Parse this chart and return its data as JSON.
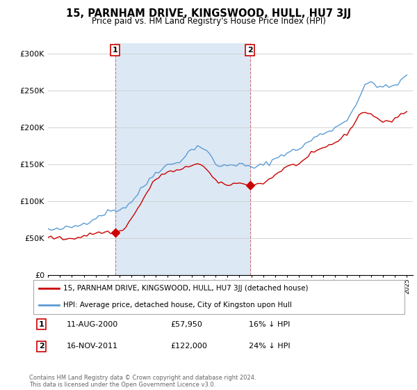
{
  "title": "15, PARNHAM DRIVE, KINGSWOOD, HULL, HU7 3JJ",
  "subtitle": "Price paid vs. HM Land Registry's House Price Index (HPI)",
  "ylabel_ticks": [
    "£0",
    "£50K",
    "£100K",
    "£150K",
    "£200K",
    "£250K",
    "£300K"
  ],
  "ytick_values": [
    0,
    50000,
    100000,
    150000,
    200000,
    250000,
    300000
  ],
  "ylim": [
    0,
    315000
  ],
  "xlim_start": 1995.3,
  "xlim_end": 2025.5,
  "marker1": {
    "year": 2000.62,
    "value": 57950,
    "label": "1"
  },
  "marker2": {
    "year": 2011.88,
    "value": 122000,
    "label": "2"
  },
  "vline1_x": 2000.62,
  "vline2_x": 2011.88,
  "legend_line1": "15, PARNHAM DRIVE, KINGSWOOD, HULL, HU7 3JJ (detached house)",
  "legend_line2": "HPI: Average price, detached house, City of Kingston upon Hull",
  "annot1_label": "1",
  "annot1_date": "11-AUG-2000",
  "annot1_price": "£57,950",
  "annot1_hpi": "16% ↓ HPI",
  "annot2_label": "2",
  "annot2_date": "16-NOV-2011",
  "annot2_price": "£122,000",
  "annot2_hpi": "24% ↓ HPI",
  "footer": "Contains HM Land Registry data © Crown copyright and database right 2024.\nThis data is licensed under the Open Government Licence v3.0.",
  "red_color": "#cc0000",
  "blue_color": "#5b9bd5",
  "shade_color": "#dce9f5",
  "bg_color": "#ffffff",
  "grid_color": "#cccccc",
  "hpi_x": [
    1995.0,
    1995.25,
    1995.5,
    1995.75,
    1996.0,
    1996.25,
    1996.5,
    1996.75,
    1997.0,
    1997.25,
    1997.5,
    1997.75,
    1998.0,
    1998.25,
    1998.5,
    1998.75,
    1999.0,
    1999.25,
    1999.5,
    1999.75,
    2000.0,
    2000.25,
    2000.5,
    2000.75,
    2001.0,
    2001.25,
    2001.5,
    2001.75,
    2002.0,
    2002.25,
    2002.5,
    2002.75,
    2003.0,
    2003.25,
    2003.5,
    2003.75,
    2004.0,
    2004.25,
    2004.5,
    2004.75,
    2005.0,
    2005.25,
    2005.5,
    2005.75,
    2006.0,
    2006.25,
    2006.5,
    2006.75,
    2007.0,
    2007.25,
    2007.5,
    2007.75,
    2008.0,
    2008.25,
    2008.5,
    2008.75,
    2009.0,
    2009.25,
    2009.5,
    2009.75,
    2010.0,
    2010.25,
    2010.5,
    2010.75,
    2011.0,
    2011.25,
    2011.5,
    2011.75,
    2012.0,
    2012.25,
    2012.5,
    2012.75,
    2013.0,
    2013.25,
    2013.5,
    2013.75,
    2014.0,
    2014.25,
    2014.5,
    2014.75,
    2015.0,
    2015.25,
    2015.5,
    2015.75,
    2016.0,
    2016.25,
    2016.5,
    2016.75,
    2017.0,
    2017.25,
    2017.5,
    2017.75,
    2018.0,
    2018.25,
    2018.5,
    2018.75,
    2019.0,
    2019.25,
    2019.5,
    2019.75,
    2020.0,
    2020.25,
    2020.5,
    2020.75,
    2021.0,
    2021.25,
    2021.5,
    2021.75,
    2022.0,
    2022.25,
    2022.5,
    2022.75,
    2023.0,
    2023.25,
    2023.5,
    2023.75,
    2024.0,
    2024.25,
    2024.5,
    2024.75,
    2025.0
  ],
  "hpi_y": [
    62000,
    61000,
    60500,
    61000,
    62000,
    63000,
    63500,
    64000,
    65000,
    66000,
    67000,
    68500,
    70000,
    72000,
    74000,
    76000,
    78000,
    80000,
    82000,
    84000,
    86000,
    87000,
    88000,
    88500,
    89000,
    91000,
    93000,
    96000,
    100000,
    105000,
    110000,
    115000,
    120000,
    125000,
    130000,
    135000,
    139000,
    142000,
    145000,
    147000,
    149000,
    150000,
    151000,
    153000,
    155000,
    158000,
    162000,
    166000,
    170000,
    173000,
    175000,
    174000,
    172000,
    168000,
    163000,
    157000,
    152000,
    148000,
    147000,
    148000,
    149000,
    150000,
    151000,
    150000,
    150000,
    149000,
    148000,
    147000,
    146000,
    146000,
    147000,
    148000,
    149000,
    151000,
    153000,
    155000,
    158000,
    160000,
    163000,
    165000,
    166000,
    167000,
    168000,
    170000,
    172000,
    174000,
    177000,
    180000,
    183000,
    186000,
    188000,
    190000,
    192000,
    194000,
    196000,
    198000,
    200000,
    202000,
    205000,
    208000,
    212000,
    218000,
    225000,
    232000,
    240000,
    248000,
    255000,
    260000,
    262000,
    260000,
    258000,
    256000,
    255000,
    254000,
    255000,
    256000,
    258000,
    260000,
    263000,
    267000,
    270000
  ],
  "price_x": [
    1995.0,
    1995.25,
    1995.5,
    1995.75,
    1996.0,
    1996.25,
    1996.5,
    1996.75,
    1997.0,
    1997.25,
    1997.5,
    1997.75,
    1998.0,
    1998.25,
    1998.5,
    1998.75,
    1999.0,
    1999.25,
    1999.5,
    1999.75,
    2000.0,
    2000.25,
    2000.5,
    2000.75,
    2001.0,
    2001.25,
    2001.5,
    2001.75,
    2002.0,
    2002.25,
    2002.5,
    2002.75,
    2003.0,
    2003.25,
    2003.5,
    2003.75,
    2004.0,
    2004.25,
    2004.5,
    2004.75,
    2005.0,
    2005.25,
    2005.5,
    2005.75,
    2006.0,
    2006.25,
    2006.5,
    2006.75,
    2007.0,
    2007.25,
    2007.5,
    2007.75,
    2008.0,
    2008.25,
    2008.5,
    2008.75,
    2009.0,
    2009.25,
    2009.5,
    2009.75,
    2010.0,
    2010.25,
    2010.5,
    2010.75,
    2011.0,
    2011.25,
    2011.5,
    2011.75,
    2012.0,
    2012.25,
    2012.5,
    2012.75,
    2013.0,
    2013.25,
    2013.5,
    2013.75,
    2014.0,
    2014.25,
    2014.5,
    2014.75,
    2015.0,
    2015.25,
    2015.5,
    2015.75,
    2016.0,
    2016.25,
    2016.5,
    2016.75,
    2017.0,
    2017.25,
    2017.5,
    2017.75,
    2018.0,
    2018.25,
    2018.5,
    2018.75,
    2019.0,
    2019.25,
    2019.5,
    2019.75,
    2020.0,
    2020.25,
    2020.5,
    2020.75,
    2021.0,
    2021.25,
    2021.5,
    2021.75,
    2022.0,
    2022.25,
    2022.5,
    2022.75,
    2023.0,
    2023.25,
    2023.5,
    2023.75,
    2024.0,
    2024.25,
    2024.5,
    2024.75,
    2025.0
  ],
  "price_y": [
    52000,
    51000,
    50500,
    50000,
    49500,
    49000,
    49000,
    49500,
    50000,
    50500,
    51000,
    52000,
    53000,
    54000,
    55000,
    56000,
    57000,
    57500,
    57800,
    57900,
    57950,
    57950,
    57950,
    58000,
    59000,
    62000,
    66000,
    71000,
    77000,
    83000,
    90000,
    97000,
    104000,
    111000,
    118000,
    124000,
    129000,
    133000,
    136000,
    138000,
    139000,
    140000,
    141000,
    141500,
    142000,
    143000,
    145000,
    147000,
    149000,
    151000,
    152000,
    150000,
    147000,
    143000,
    138000,
    133000,
    128000,
    125000,
    123000,
    122500,
    122500,
    123000,
    124000,
    124500,
    124000,
    123500,
    123000,
    122000,
    122000,
    122500,
    123000,
    124000,
    125000,
    127000,
    130000,
    133000,
    136000,
    139000,
    142000,
    145000,
    147000,
    148000,
    149000,
    150000,
    152000,
    154000,
    157000,
    160000,
    163000,
    166000,
    168000,
    170000,
    172000,
    174000,
    176000,
    178000,
    180000,
    182000,
    185000,
    188000,
    192000,
    197000,
    204000,
    210000,
    216000,
    220000,
    222000,
    220000,
    218000,
    216000,
    213000,
    210000,
    208000,
    207000,
    208000,
    210000,
    213000,
    215000,
    218000,
    220000,
    222000
  ]
}
